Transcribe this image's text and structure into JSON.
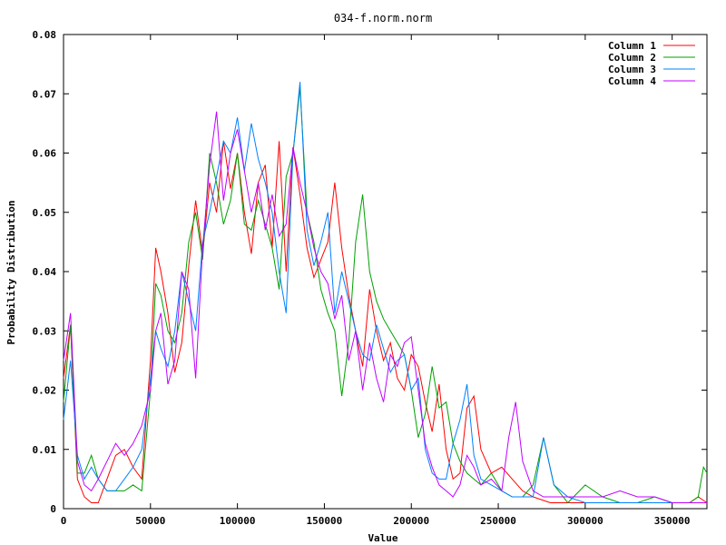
{
  "chart_data": {
    "type": "line",
    "title": "034-f.norm.norm",
    "xlabel": "Value",
    "ylabel": "Probability Distribution",
    "xlim": [
      0,
      370000
    ],
    "ylim": [
      0,
      0.08
    ],
    "grid": false,
    "legend_position": "top-right",
    "x_ticks": [
      0,
      50000,
      100000,
      150000,
      200000,
      250000,
      300000,
      350000
    ],
    "x_tick_labels": [
      "0",
      "50000",
      "100000",
      "150000",
      "200000",
      "250000",
      "300000",
      "350000"
    ],
    "y_ticks": [
      0,
      0.01,
      0.02,
      0.03,
      0.04,
      0.05,
      0.06,
      0.07,
      0.08
    ],
    "y_tick_labels": [
      "0",
      "0.01",
      "0.02",
      "0.03",
      "0.04",
      "0.05",
      "0.06",
      "0.07",
      "0.08"
    ],
    "series": [
      {
        "name": "Column 1",
        "color": "#ff0000",
        "x": [
          0,
          4000,
          8000,
          12000,
          16000,
          20000,
          25000,
          30000,
          35000,
          40000,
          45000,
          50000,
          53000,
          56000,
          60000,
          64000,
          68000,
          72000,
          76000,
          80000,
          84000,
          88000,
          92000,
          96000,
          100000,
          104000,
          108000,
          112000,
          116000,
          120000,
          124000,
          128000,
          132000,
          136000,
          140000,
          144000,
          148000,
          152000,
          156000,
          160000,
          164000,
          168000,
          172000,
          176000,
          180000,
          184000,
          188000,
          192000,
          196000,
          200000,
          204000,
          208000,
          212000,
          216000,
          220000,
          224000,
          228000,
          232000,
          236000,
          240000,
          246000,
          252000,
          258000,
          264000,
          270000,
          280000,
          290000,
          300000,
          310000,
          320000,
          330000,
          340000,
          350000,
          360000,
          365000,
          370000
        ],
        "y": [
          0.022,
          0.031,
          0.005,
          0.002,
          0.001,
          0.001,
          0.005,
          0.009,
          0.01,
          0.007,
          0.005,
          0.025,
          0.044,
          0.04,
          0.033,
          0.023,
          0.028,
          0.041,
          0.052,
          0.043,
          0.055,
          0.05,
          0.062,
          0.054,
          0.06,
          0.05,
          0.043,
          0.055,
          0.058,
          0.044,
          0.062,
          0.04,
          0.061,
          0.053,
          0.044,
          0.039,
          0.042,
          0.045,
          0.055,
          0.044,
          0.036,
          0.03,
          0.024,
          0.037,
          0.03,
          0.025,
          0.028,
          0.022,
          0.02,
          0.026,
          0.024,
          0.018,
          0.013,
          0.021,
          0.01,
          0.005,
          0.006,
          0.017,
          0.019,
          0.01,
          0.006,
          0.007,
          0.005,
          0.003,
          0.002,
          0.001,
          0.001,
          0.001,
          0.001,
          0.001,
          0.001,
          0.001,
          0.001,
          0.001,
          0.002,
          0.001
        ]
      },
      {
        "name": "Column 2",
        "color": "#00a000",
        "x": [
          0,
          4000,
          8000,
          12000,
          16000,
          20000,
          25000,
          30000,
          35000,
          40000,
          45000,
          50000,
          53000,
          56000,
          60000,
          64000,
          68000,
          72000,
          76000,
          80000,
          84000,
          88000,
          92000,
          96000,
          100000,
          104000,
          108000,
          112000,
          116000,
          120000,
          124000,
          128000,
          132000,
          136000,
          140000,
          144000,
          148000,
          152000,
          156000,
          160000,
          164000,
          168000,
          172000,
          176000,
          180000,
          184000,
          188000,
          192000,
          196000,
          200000,
          204000,
          208000,
          212000,
          216000,
          220000,
          224000,
          228000,
          232000,
          236000,
          240000,
          246000,
          252000,
          258000,
          264000,
          270000,
          276000,
          282000,
          290000,
          300000,
          310000,
          320000,
          330000,
          340000,
          350000,
          360000,
          365000,
          368000,
          370000
        ],
        "y": [
          0.018,
          0.031,
          0.006,
          0.006,
          0.009,
          0.005,
          0.003,
          0.003,
          0.003,
          0.004,
          0.003,
          0.02,
          0.038,
          0.036,
          0.03,
          0.028,
          0.033,
          0.045,
          0.05,
          0.042,
          0.06,
          0.055,
          0.048,
          0.052,
          0.06,
          0.048,
          0.047,
          0.052,
          0.048,
          0.044,
          0.037,
          0.056,
          0.06,
          0.071,
          0.05,
          0.045,
          0.037,
          0.033,
          0.03,
          0.019,
          0.028,
          0.045,
          0.053,
          0.04,
          0.035,
          0.032,
          0.03,
          0.028,
          0.026,
          0.02,
          0.012,
          0.016,
          0.024,
          0.017,
          0.018,
          0.011,
          0.008,
          0.006,
          0.005,
          0.004,
          0.006,
          0.003,
          0.002,
          0.002,
          0.004,
          0.012,
          0.004,
          0.001,
          0.004,
          0.002,
          0.001,
          0.001,
          0.002,
          0.001,
          0.001,
          0.002,
          0.007,
          0.006
        ]
      },
      {
        "name": "Column 3",
        "color": "#0080ff",
        "x": [
          0,
          4000,
          8000,
          12000,
          16000,
          20000,
          25000,
          30000,
          35000,
          40000,
          45000,
          50000,
          53000,
          56000,
          60000,
          64000,
          68000,
          72000,
          76000,
          80000,
          84000,
          88000,
          92000,
          96000,
          100000,
          104000,
          108000,
          112000,
          116000,
          120000,
          124000,
          128000,
          132000,
          136000,
          140000,
          144000,
          148000,
          152000,
          156000,
          160000,
          164000,
          168000,
          172000,
          176000,
          180000,
          184000,
          188000,
          192000,
          196000,
          200000,
          204000,
          208000,
          212000,
          216000,
          220000,
          224000,
          228000,
          232000,
          236000,
          240000,
          246000,
          252000,
          258000,
          264000,
          270000,
          276000,
          282000,
          290000,
          300000,
          310000,
          320000,
          330000,
          340000,
          350000,
          360000,
          365000,
          370000
        ],
        "y": [
          0.015,
          0.025,
          0.009,
          0.005,
          0.007,
          0.005,
          0.003,
          0.003,
          0.005,
          0.007,
          0.01,
          0.022,
          0.03,
          0.027,
          0.024,
          0.03,
          0.04,
          0.035,
          0.03,
          0.045,
          0.05,
          0.056,
          0.062,
          0.06,
          0.066,
          0.057,
          0.065,
          0.059,
          0.055,
          0.05,
          0.04,
          0.033,
          0.06,
          0.072,
          0.047,
          0.041,
          0.045,
          0.05,
          0.033,
          0.04,
          0.035,
          0.03,
          0.026,
          0.025,
          0.031,
          0.027,
          0.023,
          0.025,
          0.026,
          0.02,
          0.022,
          0.01,
          0.006,
          0.005,
          0.005,
          0.011,
          0.015,
          0.021,
          0.009,
          0.005,
          0.004,
          0.003,
          0.002,
          0.002,
          0.002,
          0.012,
          0.004,
          0.002,
          0.001,
          0.001,
          0.001,
          0.001,
          0.001,
          0.001,
          0.001,
          0.001,
          0.001
        ]
      },
      {
        "name": "Column 4",
        "color": "#c000ff",
        "x": [
          0,
          4000,
          8000,
          12000,
          16000,
          20000,
          25000,
          30000,
          35000,
          40000,
          45000,
          50000,
          53000,
          56000,
          60000,
          64000,
          68000,
          72000,
          76000,
          80000,
          84000,
          88000,
          92000,
          96000,
          100000,
          104000,
          108000,
          112000,
          116000,
          120000,
          124000,
          128000,
          132000,
          136000,
          140000,
          144000,
          148000,
          152000,
          156000,
          160000,
          164000,
          168000,
          172000,
          176000,
          180000,
          184000,
          188000,
          192000,
          196000,
          200000,
          204000,
          208000,
          212000,
          216000,
          220000,
          224000,
          228000,
          232000,
          236000,
          240000,
          246000,
          252000,
          256000,
          260000,
          264000,
          270000,
          276000,
          282000,
          290000,
          300000,
          310000,
          320000,
          330000,
          340000,
          350000,
          360000,
          365000,
          370000
        ],
        "y": [
          0.025,
          0.033,
          0.008,
          0.004,
          0.003,
          0.005,
          0.008,
          0.011,
          0.009,
          0.011,
          0.014,
          0.02,
          0.03,
          0.033,
          0.021,
          0.025,
          0.04,
          0.037,
          0.022,
          0.044,
          0.058,
          0.067,
          0.052,
          0.06,
          0.064,
          0.057,
          0.05,
          0.055,
          0.047,
          0.053,
          0.046,
          0.048,
          0.061,
          0.055,
          0.05,
          0.044,
          0.04,
          0.038,
          0.032,
          0.036,
          0.025,
          0.03,
          0.02,
          0.028,
          0.022,
          0.018,
          0.026,
          0.024,
          0.028,
          0.029,
          0.02,
          0.011,
          0.007,
          0.004,
          0.003,
          0.002,
          0.004,
          0.009,
          0.007,
          0.004,
          0.005,
          0.003,
          0.012,
          0.018,
          0.008,
          0.003,
          0.002,
          0.002,
          0.002,
          0.002,
          0.002,
          0.003,
          0.002,
          0.002,
          0.001,
          0.001,
          0.001,
          0.001
        ]
      }
    ]
  }
}
